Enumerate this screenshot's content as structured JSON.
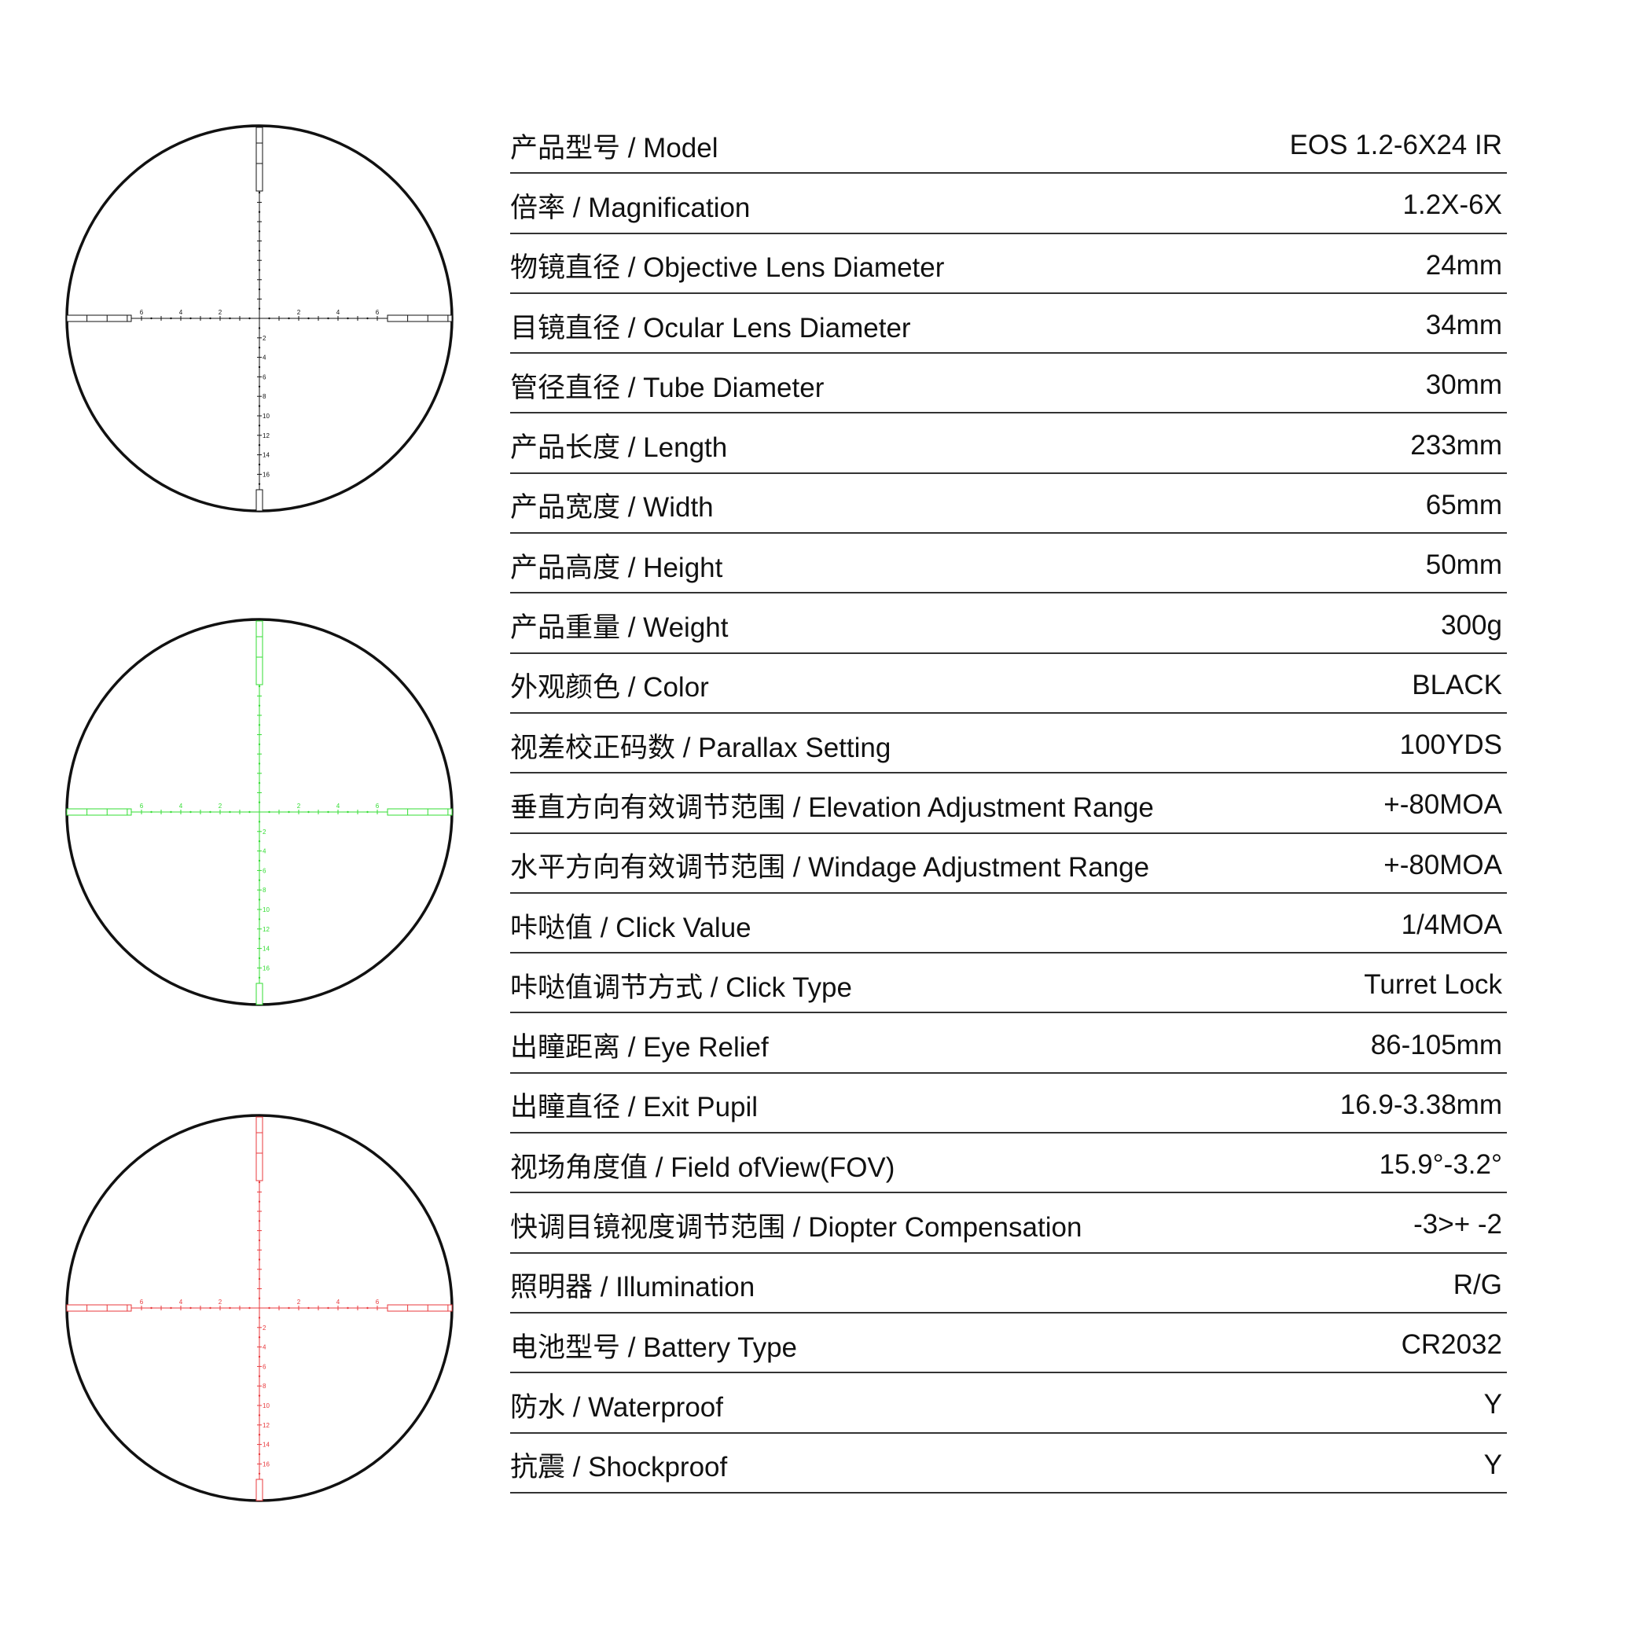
{
  "reticles": [
    {
      "variant": "standard",
      "color": "#111111"
    },
    {
      "variant": "green-illuminated",
      "color": "#33dd33"
    },
    {
      "variant": "red-illuminated",
      "color": "#e8393c"
    }
  ],
  "reticle_labels": {
    "horizontal": [
      "2",
      "4",
      "6"
    ],
    "vertical": [
      "2",
      "4",
      "6",
      "8",
      "10",
      "12",
      "14",
      "16"
    ]
  },
  "specs": [
    {
      "label": "产品型号 / Model",
      "value": "EOS 1.2-6X24 IR"
    },
    {
      "label": "倍率 / Magnification",
      "value": "1.2X-6X"
    },
    {
      "label": "物镜直径 / Objective Lens Diameter",
      "value": "24mm"
    },
    {
      "label": "目镜直径 / Ocular Lens Diameter",
      "value": "34mm"
    },
    {
      "label": "管径直径 / Tube Diameter",
      "value": "30mm"
    },
    {
      "label": "产品长度 / Length",
      "value": "233mm"
    },
    {
      "label": "产品宽度 / Width",
      "value": "65mm"
    },
    {
      "label": "产品高度 / Height",
      "value": "50mm"
    },
    {
      "label": "产品重量 / Weight",
      "value": "300g"
    },
    {
      "label": "外观颜色 / Color",
      "value": "BLACK"
    },
    {
      "label": "视差校正码数 / Parallax Setting",
      "value": "100YDS"
    },
    {
      "label": "垂直方向有效调节范围 / Elevation Adjustment Range",
      "value": "+-80MOA"
    },
    {
      "label": "水平方向有效调节范围 / Windage Adjustment Range",
      "value": "+-80MOA"
    },
    {
      "label": "咔哒值 / Click Value",
      "value": "1/4MOA"
    },
    {
      "label": "咔哒值调节方式 / Click Type",
      "value": "Turret Lock"
    },
    {
      "label": "出瞳距离 / Eye Relief",
      "value": "86-105mm"
    },
    {
      "label": "出瞳直径 / Exit Pupil",
      "value": "16.9-3.38mm"
    },
    {
      "label": "视场角度值 / Field ofView(FOV)",
      "value": "15.9°-3.2°"
    },
    {
      "label": "快调目镜视度调节范围 / Diopter Compensation",
      "value": "-3>+ -2"
    },
    {
      "label": "照明器 / Illumination",
      "value": "R/G"
    },
    {
      "label": "电池型号 / Battery Type",
      "value": "CR2032"
    },
    {
      "label": "防水 / Waterproof",
      "value": "Y"
    },
    {
      "label": "抗震 / Shockproof",
      "value": "Y"
    }
  ]
}
